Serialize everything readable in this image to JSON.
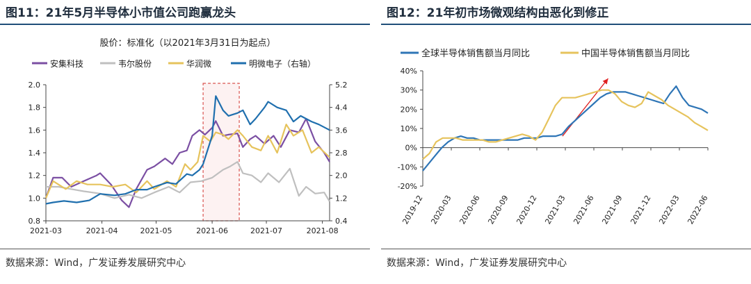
{
  "left": {
    "title": "图11：21年5月半导体小市值公司跑赢龙头",
    "source": "数据来源：Wind，广发证券发展研究中心"
  },
  "right": {
    "title": "图12：21年初市场微观结构由恶化到修正",
    "source": "数据来源：Wind，广发证券发展研究中心"
  },
  "chart_data": [
    {
      "type": "line",
      "subtitle": "股价：标准化（以2021年3月31日为起点）",
      "x_ticks": [
        "2021-03",
        "2021-04",
        "2021-05",
        "2021-06",
        "2021-07",
        "2021-08"
      ],
      "x_range": [
        "2021-03-01",
        "2021-08-05"
      ],
      "ylim_left": [
        0.8,
        2.0
      ],
      "yticks_left": [
        "2.0",
        "1.8",
        "1.6",
        "1.4",
        "1.2",
        "1.0",
        "0.8"
      ],
      "ylim_right": [
        0.4,
        5.2
      ],
      "yticks_right": [
        "5.2",
        "4.4",
        "3.6",
        "2.8",
        "2.0",
        "1.2",
        "0.4"
      ],
      "highlight": {
        "from": "2021-05-27",
        "to": "2021-06-16"
      },
      "series": [
        {
          "name": "安集科技",
          "color": "#7b4fa3",
          "axis": "left",
          "x": [
            "2021-03-01",
            "2021-03-05",
            "2021-03-10",
            "2021-03-15",
            "2021-03-22",
            "2021-03-29",
            "2021-03-31",
            "2021-04-06",
            "2021-04-12",
            "2021-04-16",
            "2021-04-20",
            "2021-04-26",
            "2021-04-30",
            "2021-05-06",
            "2021-05-10",
            "2021-05-14",
            "2021-05-18",
            "2021-05-21",
            "2021-05-25",
            "2021-05-28",
            "2021-06-01",
            "2021-06-03",
            "2021-06-07",
            "2021-06-10",
            "2021-06-15",
            "2021-06-18",
            "2021-06-22",
            "2021-06-25",
            "2021-06-30",
            "2021-07-05",
            "2021-07-09",
            "2021-07-14",
            "2021-07-19",
            "2021-07-23",
            "2021-07-28",
            "2021-08-02",
            "2021-08-05"
          ],
          "y": [
            1.0,
            1.18,
            1.18,
            1.1,
            1.15,
            1.2,
            1.22,
            1.12,
            0.98,
            0.92,
            1.08,
            1.25,
            1.28,
            1.35,
            1.3,
            1.4,
            1.42,
            1.55,
            1.6,
            1.56,
            1.62,
            1.68,
            1.55,
            1.56,
            1.57,
            1.45,
            1.52,
            1.55,
            1.48,
            1.55,
            1.45,
            1.6,
            1.58,
            1.7,
            1.5,
            1.4,
            1.32
          ]
        },
        {
          "name": "韦尔股份",
          "color": "#bfbfbf",
          "axis": "left",
          "x": [
            "2021-03-01",
            "2021-03-08",
            "2021-03-15",
            "2021-03-22",
            "2021-03-31",
            "2021-04-08",
            "2021-04-16",
            "2021-04-23",
            "2021-04-30",
            "2021-05-08",
            "2021-05-14",
            "2021-05-20",
            "2021-05-26",
            "2021-06-01",
            "2021-06-07",
            "2021-06-11",
            "2021-06-15",
            "2021-06-18",
            "2021-06-23",
            "2021-06-28",
            "2021-07-02",
            "2021-07-08",
            "2021-07-14",
            "2021-07-19",
            "2021-07-23",
            "2021-07-28",
            "2021-08-02",
            "2021-08-05"
          ],
          "y": [
            1.1,
            1.1,
            1.08,
            1.06,
            1.04,
            1.0,
            1.03,
            1.0,
            1.05,
            1.1,
            1.05,
            1.14,
            1.15,
            1.18,
            1.25,
            1.28,
            1.32,
            1.22,
            1.2,
            1.14,
            1.22,
            1.14,
            1.26,
            1.02,
            1.1,
            1.04,
            1.05,
            0.97
          ]
        },
        {
          "name": "华润微",
          "color": "#e6c35c",
          "axis": "left",
          "x": [
            "2021-03-01",
            "2021-03-05",
            "2021-03-12",
            "2021-03-18",
            "2021-03-24",
            "2021-03-31",
            "2021-04-07",
            "2021-04-14",
            "2021-04-20",
            "2021-04-26",
            "2021-04-30",
            "2021-05-07",
            "2021-05-12",
            "2021-05-17",
            "2021-05-20",
            "2021-05-24",
            "2021-05-27",
            "2021-05-31",
            "2021-06-03",
            "2021-06-07",
            "2021-06-10",
            "2021-06-15",
            "2021-06-18",
            "2021-06-23",
            "2021-06-28",
            "2021-07-02",
            "2021-07-07",
            "2021-07-12",
            "2021-07-16",
            "2021-07-21",
            "2021-07-26",
            "2021-07-30",
            "2021-08-05"
          ],
          "y": [
            1.0,
            1.15,
            1.08,
            1.15,
            1.12,
            1.12,
            1.1,
            1.12,
            1.05,
            1.15,
            1.08,
            1.15,
            1.1,
            1.3,
            1.25,
            1.32,
            1.55,
            1.5,
            1.58,
            1.56,
            1.52,
            1.6,
            1.55,
            1.45,
            1.42,
            1.55,
            1.4,
            1.65,
            1.55,
            1.6,
            1.4,
            1.45,
            1.36
          ]
        },
        {
          "name": "明微电子（右轴）",
          "color": "#1f6fae",
          "axis": "right",
          "x": [
            "2021-03-01",
            "2021-03-05",
            "2021-03-11",
            "2021-03-18",
            "2021-03-25",
            "2021-03-31",
            "2021-04-08",
            "2021-04-14",
            "2021-04-20",
            "2021-04-26",
            "2021-04-30",
            "2021-05-07",
            "2021-05-12",
            "2021-05-18",
            "2021-05-21",
            "2021-05-25",
            "2021-05-27",
            "2021-06-01",
            "2021-06-03",
            "2021-06-07",
            "2021-06-10",
            "2021-06-15",
            "2021-06-18",
            "2021-06-22",
            "2021-06-25",
            "2021-06-30",
            "2021-07-02",
            "2021-07-07",
            "2021-07-12",
            "2021-07-16",
            "2021-07-20",
            "2021-07-26",
            "2021-07-30",
            "2021-08-05"
          ],
          "y": [
            1.0,
            1.05,
            1.1,
            1.05,
            1.12,
            1.35,
            1.3,
            1.35,
            1.5,
            1.5,
            1.6,
            1.75,
            1.7,
            2.05,
            2.0,
            2.2,
            2.4,
            3.4,
            4.8,
            4.3,
            4.1,
            4.2,
            4.3,
            3.8,
            4.0,
            4.4,
            4.6,
            4.4,
            4.3,
            3.9,
            4.1,
            3.9,
            3.8,
            3.6
          ]
        }
      ]
    },
    {
      "type": "line",
      "x_ticks": [
        "2019-12",
        "2020-03",
        "2020-06",
        "2020-09",
        "2020-12",
        "2021-03",
        "2021-06",
        "2021-09",
        "2021-12",
        "2022-03",
        "2022-06"
      ],
      "ylim": [
        -20,
        40
      ],
      "yticks": [
        "40%",
        "30%",
        "20%",
        "10%",
        "0%",
        "-10%",
        "-20%"
      ],
      "annotation": "arrow pointing up-right",
      "series": [
        {
          "name": "全球半导体销售额当月同比",
          "color": "#2e75b6",
          "y": [
            -12,
            -8,
            -4,
            0,
            3,
            5,
            6,
            5,
            5,
            4,
            4,
            4,
            4,
            4,
            4,
            4,
            5,
            5,
            5,
            6,
            6,
            6,
            7,
            11,
            14,
            17,
            20,
            23,
            26,
            28,
            29,
            29,
            29,
            28,
            27,
            26,
            25,
            24,
            23,
            28,
            32,
            26,
            22,
            21,
            20,
            18
          ]
        },
        {
          "name": "中国半导体销售额当月同比",
          "color": "#e6c35c",
          "y": [
            -6,
            -3,
            3,
            5,
            5,
            5,
            4,
            4,
            4,
            4,
            3,
            3,
            4,
            5,
            6,
            7,
            6,
            4,
            8,
            15,
            22,
            26,
            26,
            26,
            27,
            28,
            29,
            30,
            30,
            28,
            24,
            22,
            21,
            23,
            29,
            27,
            25,
            22,
            20,
            18,
            16,
            13,
            11,
            9
          ]
        }
      ]
    }
  ]
}
